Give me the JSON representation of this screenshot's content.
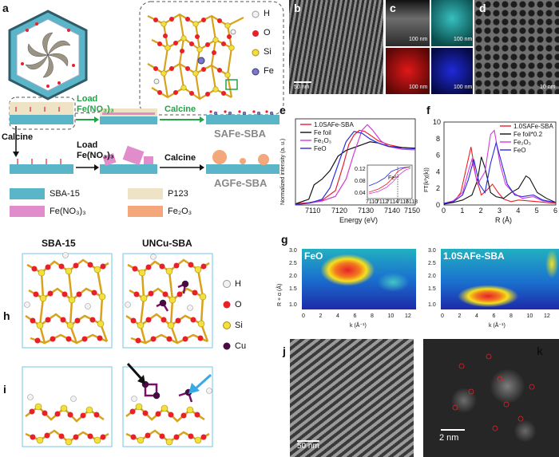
{
  "panels": {
    "a": "a",
    "b": "b",
    "c": "c",
    "d": "d",
    "e": "e",
    "f": "f",
    "g": "g",
    "h": "h",
    "i": "i",
    "j": "j",
    "k": "k"
  },
  "panel_a": {
    "atom_legend": [
      "H",
      "O",
      "Si",
      "Fe"
    ],
    "load_label_top": "Load",
    "load_formula_top": "Fe(NO₃)₃",
    "calcine_top": "Calcine",
    "product_top": "SAFe-SBA",
    "calcine_left": "Calcine",
    "load_label_bottom": "Load",
    "load_formula_bottom": "Fe(NO₃)₃",
    "calcine_bottom": "Calcine",
    "product_bottom": "AGFe-SBA",
    "material_legend": [
      "SBA-15",
      "P123",
      "Fe(NO₃)₃",
      "Fe₂O₃"
    ],
    "colors": {
      "sba": "#5bb5c8",
      "p123": "#efe3c6",
      "fenitrate": "#e18ccb",
      "fe2o3": "#f3a77a",
      "green": "#22a447"
    }
  },
  "panel_b": {
    "scale": "50 nm"
  },
  "panel_c": {
    "scales": [
      "100 nm",
      "100 nm",
      "100 nm",
      "100 nm"
    ]
  },
  "panel_d": {
    "scale": "10 nm"
  },
  "panel_e": {
    "xlabel": "Energy (eV)",
    "ylabel": "Normalized intensity (a. u.)",
    "xticks": [
      "7110",
      "7120",
      "7130",
      "7140",
      "7150"
    ],
    "inset_yticks": [
      "0.12",
      "0.08",
      "0.04"
    ],
    "inset_xticks": [
      "7110",
      "7112",
      "7114",
      "7116",
      "7118"
    ],
    "inset_label": "Fe³⁺"
  },
  "panel_f": {
    "xlabel": "R (Å)",
    "ylabel": "FT(k²χ(k))",
    "xticks": [
      "0",
      "1",
      "2",
      "3",
      "4",
      "5",
      "6"
    ],
    "yticks": [
      "0",
      "2",
      "4",
      "6",
      "8",
      "10"
    ]
  },
  "panel_g": {
    "left_title": "FeO",
    "right_title": "1.0SAFe-SBA",
    "ylabel": "R + α (Å)",
    "xlabel": "k (Å⁻¹)",
    "yticks": [
      "3.0",
      "2.5",
      "2.0",
      "1.5",
      "1.0"
    ],
    "xticks": [
      "0",
      "2",
      "4",
      "6",
      "8",
      "10",
      "12"
    ]
  },
  "panel_hi": {
    "col_left": "SBA-15",
    "col_right": "UNCu-SBA",
    "atom_legend": [
      "H",
      "O",
      "Si",
      "Cu"
    ]
  },
  "panel_j": {
    "scale": "50 nm"
  },
  "panel_k": {
    "scale": "2 nm"
  },
  "chart_data": [
    {
      "type": "line",
      "xlabel": "Energy (eV)",
      "ylabel": "Normalized intensity (a. u.)",
      "xlim": [
        7105,
        7150
      ],
      "series": [
        {
          "name": "1.0SAFe-SBA",
          "color": "#e8202a",
          "x": [
            7105,
            7110,
            7115,
            7120,
            7123,
            7125,
            7127,
            7129,
            7131,
            7133,
            7136,
            7140,
            7145,
            7150
          ],
          "y": [
            0.02,
            0.04,
            0.08,
            0.25,
            0.7,
            1.05,
            1.22,
            1.3,
            1.28,
            1.22,
            1.12,
            1.05,
            1.0,
            0.98
          ]
        },
        {
          "name": "Fe foil",
          "color": "#111111",
          "x": [
            7105,
            7110,
            7112,
            7115,
            7118,
            7121,
            7124,
            7127,
            7130,
            7133,
            7136,
            7140,
            7145,
            7150
          ],
          "y": [
            0.02,
            0.1,
            0.35,
            0.45,
            0.6,
            0.85,
            0.95,
            1.0,
            1.05,
            1.1,
            1.08,
            1.02,
            1.0,
            0.99
          ]
        },
        {
          "name": "Fe₂O₃",
          "color": "#d23bd8",
          "x": [
            7105,
            7110,
            7115,
            7120,
            7124,
            7127,
            7130,
            7132,
            7134,
            7137,
            7140,
            7145,
            7150
          ],
          "y": [
            0.01,
            0.03,
            0.07,
            0.15,
            0.45,
            0.9,
            1.3,
            1.4,
            1.3,
            1.12,
            1.02,
            0.97,
            0.96
          ]
        },
        {
          "name": "FeO",
          "color": "#2a2ae0",
          "x": [
            7105,
            7110,
            7115,
            7118,
            7121,
            7124,
            7127,
            7130,
            7133,
            7136,
            7140,
            7145,
            7150
          ],
          "y": [
            0.01,
            0.03,
            0.1,
            0.3,
            0.7,
            1.1,
            1.28,
            1.25,
            1.15,
            1.08,
            1.02,
            0.99,
            0.98
          ]
        }
      ]
    },
    {
      "type": "line",
      "xlabel": "R (Å)",
      "ylabel": "FT(k²χ(k))",
      "xlim": [
        0,
        6
      ],
      "ylim": [
        0,
        10
      ],
      "series": [
        {
          "name": "1.0SAFe-SBA",
          "color": "#e8202a",
          "x": [
            0,
            0.5,
            0.9,
            1.2,
            1.45,
            1.7,
            2.0,
            2.3,
            2.6,
            2.9,
            3.2,
            3.6,
            4.0,
            4.5,
            5.0,
            5.5,
            6.0
          ],
          "y": [
            0.2,
            0.3,
            1.5,
            4.5,
            7.0,
            3.5,
            1.2,
            1.8,
            2.5,
            1.5,
            0.7,
            0.4,
            0.6,
            0.5,
            0.4,
            0.3,
            0.2
          ]
        },
        {
          "name": "Fe foil*0.2",
          "color": "#111111",
          "x": [
            0,
            0.5,
            1.0,
            1.5,
            1.8,
            2.0,
            2.2,
            2.5,
            2.8,
            3.2,
            3.6,
            4.0,
            4.4,
            4.6,
            5.0,
            5.5,
            6.0
          ],
          "y": [
            0.1,
            0.3,
            0.6,
            1.2,
            3.0,
            5.8,
            4.5,
            1.5,
            1.0,
            0.8,
            1.5,
            2.0,
            3.5,
            3.2,
            1.5,
            0.8,
            0.3
          ]
        },
        {
          "name": "Fe₂O₃",
          "color": "#d23bd8",
          "x": [
            0,
            0.5,
            1.0,
            1.3,
            1.5,
            1.8,
            2.2,
            2.5,
            2.7,
            3.0,
            3.3,
            3.7,
            4.2,
            4.8,
            5.3,
            6.0
          ],
          "y": [
            0.2,
            0.5,
            1.5,
            4.0,
            5.5,
            2.5,
            4.0,
            8.5,
            9.0,
            5.0,
            2.5,
            1.5,
            0.8,
            1.0,
            0.5,
            0.3
          ]
        },
        {
          "name": "FeO",
          "color": "#2a2ae0",
          "x": [
            0,
            0.5,
            1.0,
            1.3,
            1.6,
            1.9,
            2.2,
            2.5,
            2.8,
            3.1,
            3.4,
            3.8,
            4.2,
            4.8,
            5.3,
            6.0
          ],
          "y": [
            0.2,
            0.4,
            1.2,
            3.0,
            5.5,
            2.5,
            1.5,
            5.0,
            7.5,
            5.0,
            2.5,
            1.2,
            1.0,
            1.2,
            0.6,
            0.3
          ]
        }
      ]
    }
  ]
}
